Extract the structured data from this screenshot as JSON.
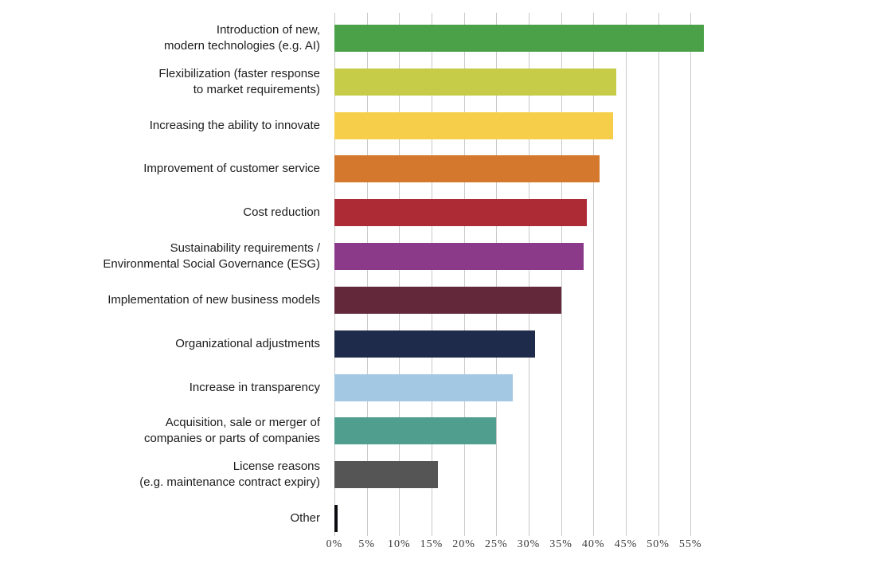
{
  "chart_data": {
    "type": "bar",
    "orientation": "horizontal",
    "title": "",
    "xlabel": "",
    "ylabel": "",
    "unit": "%",
    "xlim": [
      0,
      55
    ],
    "grid": true,
    "legend": false,
    "grid_color": "#c9c9c9",
    "label_color": "#1c1c1c",
    "axis_text_color": "#3a3a3a",
    "x_ticks": [
      {
        "label": "0%",
        "value": 0
      },
      {
        "label": "5%",
        "value": 5
      },
      {
        "label": "10%",
        "value": 10
      },
      {
        "label": "15%",
        "value": 15
      },
      {
        "label": "20%",
        "value": 20
      },
      {
        "label": "25%",
        "value": 25
      },
      {
        "label": "30%",
        "value": 30
      },
      {
        "label": "35%",
        "value": 35
      },
      {
        "label": "40%",
        "value": 40
      },
      {
        "label": "45%",
        "value": 45
      },
      {
        "label": "50%",
        "value": 50
      },
      {
        "label": "55%",
        "value": 55
      }
    ],
    "categories": [
      {
        "label": [
          "Introduction of new,",
          "modern technologies (e.g. AI)"
        ],
        "value": 57,
        "color": "#4ba147"
      },
      {
        "label": [
          "Flexibilization (faster response",
          "to market requirements)"
        ],
        "value": 43.5,
        "color": "#c6cc48"
      },
      {
        "label": [
          "Increasing the ability to innovate"
        ],
        "value": 43,
        "color": "#f6ce49"
      },
      {
        "label": [
          "Improvement of customer service"
        ],
        "value": 41,
        "color": "#d4782d"
      },
      {
        "label": [
          "Cost reduction"
        ],
        "value": 39,
        "color": "#ad2b35"
      },
      {
        "label": [
          "Sustainability requirements /",
          "Environmental Social Governance (ESG)"
        ],
        "value": 38.5,
        "color": "#8b3a89"
      },
      {
        "label": [
          "Implementation of new business models"
        ],
        "value": 35,
        "color": "#632839"
      },
      {
        "label": [
          "Organizational adjustments"
        ],
        "value": 31,
        "color": "#1f2b4a"
      },
      {
        "label": [
          "Increase in transparency"
        ],
        "value": 27.5,
        "color": "#a3c8e4"
      },
      {
        "label": [
          "Acquisition, sale or merger of",
          "companies or parts of companies"
        ],
        "value": 25,
        "color": "#4f9e8e"
      },
      {
        "label": [
          "License reasons",
          "(e.g. maintenance contract expiry)"
        ],
        "value": 16,
        "color": "#555555"
      },
      {
        "label": [
          "Other"
        ],
        "value": 0.5,
        "color": "#0d0d11"
      }
    ]
  }
}
